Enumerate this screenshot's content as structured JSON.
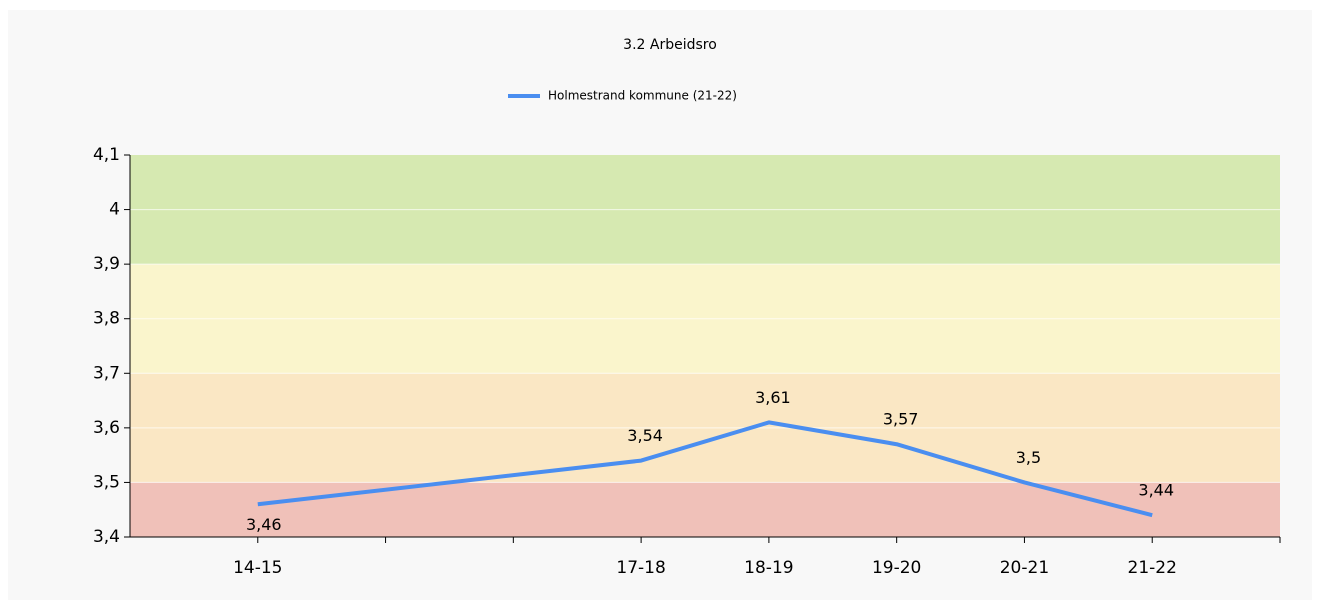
{
  "chart_data": {
    "type": "line",
    "title": "3.2 Arbeidsro",
    "categories": [
      "14-15",
      null,
      null,
      "17-18",
      "18-19",
      "19-20",
      "20-21",
      "21-22"
    ],
    "series": [
      {
        "name": "Holmestrand kommune (21-22)",
        "color": "#4a8ef0",
        "values": [
          3.46,
          null,
          null,
          3.54,
          3.61,
          3.57,
          3.5,
          3.44
        ],
        "value_labels": [
          "3,46",
          null,
          null,
          "3,54",
          "3,61",
          "3,57",
          "3,5",
          "3,44"
        ]
      }
    ],
    "connect_gaps": true,
    "ylim": [
      3.4,
      4.1
    ],
    "yticks": [
      {
        "value": 3.4,
        "label": "3,4"
      },
      {
        "value": 3.5,
        "label": "3,5"
      },
      {
        "value": 3.6,
        "label": "3,6"
      },
      {
        "value": 3.7,
        "label": "3,7"
      },
      {
        "value": 3.8,
        "label": "3,8"
      },
      {
        "value": 3.9,
        "label": "3,9"
      },
      4,
      {
        "value": 4.1,
        "label": "4,1"
      }
    ],
    "bands": [
      {
        "from": 3.4,
        "to": 3.5,
        "color": "#f0c1b9"
      },
      {
        "from": 3.5,
        "to": 3.7,
        "color": "#fae7c4"
      },
      {
        "from": 3.7,
        "to": 3.9,
        "color": "#faf5cc"
      },
      {
        "from": 3.9,
        "to": 4.1,
        "color": "#d6e9b1"
      }
    ],
    "grid": true,
    "legend": "top"
  }
}
